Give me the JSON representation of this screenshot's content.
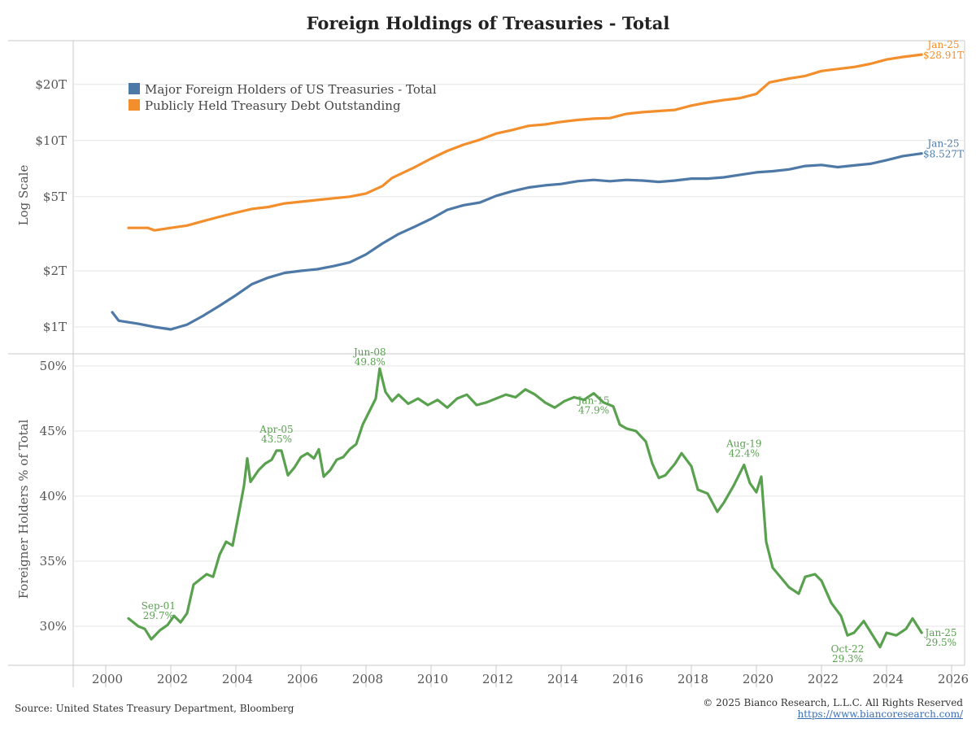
{
  "title": "Foreign Holdings of Treasuries - Total",
  "footer": {
    "source": "Source: United States Treasury Department, Bloomberg",
    "copyright": "© 2025 Bianco Research, L.L.C. All Rights Reserved",
    "website": "https://www.biancoresearch.com/"
  },
  "colors": {
    "foreign": "#4e79a7",
    "debt": "#f28e2b",
    "pct": "#59a14f",
    "grid": "#e6e6e6",
    "axis": "#c8c8c8"
  },
  "chart_data": [
    {
      "type": "line",
      "ylabel": "Log Scale",
      "yscale": "log",
      "yticks": [
        {
          "value": 1,
          "label": "$1T"
        },
        {
          "value": 2,
          "label": "$2T"
        },
        {
          "value": 5,
          "label": "$5T"
        },
        {
          "value": 10,
          "label": "$10T"
        },
        {
          "value": 20,
          "label": "$20T"
        }
      ],
      "legend_position": "top-left",
      "series": [
        {
          "name": "Major Foreign Holders of US Treasuries  -  Total",
          "key": "foreign",
          "points": [
            [
              2000.2,
              1.2
            ],
            [
              2000.4,
              1.08
            ],
            [
              2001.0,
              1.04
            ],
            [
              2001.5,
              1.0
            ],
            [
              2002.0,
              0.97
            ],
            [
              2002.5,
              1.03
            ],
            [
              2003.0,
              1.15
            ],
            [
              2003.5,
              1.3
            ],
            [
              2004.0,
              1.48
            ],
            [
              2004.5,
              1.7
            ],
            [
              2005.0,
              1.84
            ],
            [
              2005.5,
              1.95
            ],
            [
              2006.0,
              2.0
            ],
            [
              2006.5,
              2.04
            ],
            [
              2007.0,
              2.12
            ],
            [
              2007.5,
              2.22
            ],
            [
              2008.0,
              2.45
            ],
            [
              2008.5,
              2.8
            ],
            [
              2009.0,
              3.15
            ],
            [
              2009.5,
              3.45
            ],
            [
              2010.0,
              3.8
            ],
            [
              2010.5,
              4.25
            ],
            [
              2011.0,
              4.5
            ],
            [
              2011.5,
              4.65
            ],
            [
              2012.0,
              5.05
            ],
            [
              2012.5,
              5.35
            ],
            [
              2013.0,
              5.6
            ],
            [
              2013.5,
              5.75
            ],
            [
              2014.0,
              5.85
            ],
            [
              2014.5,
              6.05
            ],
            [
              2015.0,
              6.15
            ],
            [
              2015.5,
              6.05
            ],
            [
              2016.0,
              6.15
            ],
            [
              2016.5,
              6.1
            ],
            [
              2017.0,
              6.0
            ],
            [
              2017.5,
              6.1
            ],
            [
              2018.0,
              6.25
            ],
            [
              2018.5,
              6.25
            ],
            [
              2019.0,
              6.35
            ],
            [
              2019.5,
              6.55
            ],
            [
              2020.0,
              6.75
            ],
            [
              2020.5,
              6.85
            ],
            [
              2021.0,
              7.0
            ],
            [
              2021.5,
              7.3
            ],
            [
              2022.0,
              7.4
            ],
            [
              2022.5,
              7.2
            ],
            [
              2023.0,
              7.35
            ],
            [
              2023.5,
              7.5
            ],
            [
              2024.0,
              7.85
            ],
            [
              2024.5,
              8.25
            ],
            [
              2025.08,
              8.527
            ]
          ]
        },
        {
          "name": "Publicly Held Treasury Debt Outstanding",
          "key": "debt",
          "points": [
            [
              2000.7,
              3.4
            ],
            [
              2001.3,
              3.4
            ],
            [
              2001.5,
              3.3
            ],
            [
              2002.0,
              3.4
            ],
            [
              2002.5,
              3.5
            ],
            [
              2003.0,
              3.7
            ],
            [
              2003.5,
              3.9
            ],
            [
              2004.0,
              4.1
            ],
            [
              2004.5,
              4.3
            ],
            [
              2005.0,
              4.4
            ],
            [
              2005.5,
              4.6
            ],
            [
              2006.0,
              4.7
            ],
            [
              2006.5,
              4.8
            ],
            [
              2007.0,
              4.9
            ],
            [
              2007.5,
              5.0
            ],
            [
              2008.0,
              5.2
            ],
            [
              2008.5,
              5.7
            ],
            [
              2008.8,
              6.3
            ],
            [
              2009.5,
              7.2
            ],
            [
              2010.0,
              8.0
            ],
            [
              2010.5,
              8.8
            ],
            [
              2011.0,
              9.5
            ],
            [
              2011.5,
              10.1
            ],
            [
              2012.0,
              10.9
            ],
            [
              2012.5,
              11.4
            ],
            [
              2013.0,
              12.0
            ],
            [
              2013.5,
              12.2
            ],
            [
              2014.0,
              12.6
            ],
            [
              2014.5,
              12.9
            ],
            [
              2015.0,
              13.1
            ],
            [
              2015.5,
              13.2
            ],
            [
              2016.0,
              13.9
            ],
            [
              2016.5,
              14.2
            ],
            [
              2017.0,
              14.4
            ],
            [
              2017.5,
              14.6
            ],
            [
              2018.0,
              15.4
            ],
            [
              2018.5,
              16.0
            ],
            [
              2019.0,
              16.5
            ],
            [
              2019.5,
              16.9
            ],
            [
              2020.0,
              17.8
            ],
            [
              2020.4,
              20.5
            ],
            [
              2021.0,
              21.5
            ],
            [
              2021.5,
              22.2
            ],
            [
              2022.0,
              23.6
            ],
            [
              2022.5,
              24.2
            ],
            [
              2023.0,
              24.8
            ],
            [
              2023.5,
              25.8
            ],
            [
              2024.0,
              27.2
            ],
            [
              2024.5,
              28.1
            ],
            [
              2025.08,
              28.91
            ]
          ]
        }
      ],
      "annotations": [
        {
          "key": "debt",
          "x": 2025.08,
          "y": 28.91,
          "line1": "Jan-25",
          "line2": "$28.91T"
        },
        {
          "key": "foreign",
          "x": 2025.08,
          "y": 8.527,
          "line1": "Jan-25",
          "line2": "$8.527T"
        }
      ]
    },
    {
      "type": "line",
      "ylabel": "Foreigner Holders % of Total",
      "ylim": [
        26.5,
        50.5
      ],
      "yticks": [
        {
          "value": 30,
          "label": "30%"
        },
        {
          "value": 35,
          "label": "35%"
        },
        {
          "value": 40,
          "label": "40%"
        },
        {
          "value": 45,
          "label": "45%"
        },
        {
          "value": 50,
          "label": "50%"
        }
      ],
      "xlim": [
        1999.0,
        2026.4
      ],
      "xticks": [
        "2000",
        "2002",
        "2004",
        "2006",
        "2008",
        "2010",
        "2012",
        "2014",
        "2016",
        "2018",
        "2020",
        "2022",
        "2024",
        "2026"
      ],
      "series": [
        {
          "name": "",
          "key": "pct",
          "points": [
            [
              2000.7,
              30.6
            ],
            [
              2001.0,
              30.0
            ],
            [
              2001.2,
              29.8
            ],
            [
              2001.4,
              29.0
            ],
            [
              2001.67,
              29.7
            ],
            [
              2001.9,
              30.1
            ],
            [
              2002.1,
              30.8
            ],
            [
              2002.3,
              30.3
            ],
            [
              2002.5,
              31.0
            ],
            [
              2002.7,
              33.2
            ],
            [
              2002.9,
              33.6
            ],
            [
              2003.1,
              34.0
            ],
            [
              2003.3,
              33.8
            ],
            [
              2003.5,
              35.5
            ],
            [
              2003.7,
              36.5
            ],
            [
              2003.9,
              36.2
            ],
            [
              2004.1,
              38.8
            ],
            [
              2004.25,
              40.8
            ],
            [
              2004.35,
              42.9
            ],
            [
              2004.45,
              41.1
            ],
            [
              2004.7,
              42.0
            ],
            [
              2004.9,
              42.5
            ],
            [
              2005.1,
              42.8
            ],
            [
              2005.25,
              43.5
            ],
            [
              2005.4,
              43.5
            ],
            [
              2005.6,
              41.6
            ],
            [
              2005.8,
              42.2
            ],
            [
              2006.0,
              43.0
            ],
            [
              2006.2,
              43.3
            ],
            [
              2006.4,
              42.9
            ],
            [
              2006.55,
              43.6
            ],
            [
              2006.7,
              41.5
            ],
            [
              2006.9,
              42.0
            ],
            [
              2007.1,
              42.8
            ],
            [
              2007.3,
              43.0
            ],
            [
              2007.5,
              43.6
            ],
            [
              2007.7,
              44.0
            ],
            [
              2007.9,
              45.5
            ],
            [
              2008.1,
              46.5
            ],
            [
              2008.3,
              47.5
            ],
            [
              2008.42,
              49.8
            ],
            [
              2008.6,
              48.0
            ],
            [
              2008.8,
              47.3
            ],
            [
              2009.0,
              47.8
            ],
            [
              2009.3,
              47.1
            ],
            [
              2009.6,
              47.5
            ],
            [
              2009.9,
              47.0
            ],
            [
              2010.2,
              47.4
            ],
            [
              2010.5,
              46.8
            ],
            [
              2010.8,
              47.5
            ],
            [
              2011.1,
              47.8
            ],
            [
              2011.4,
              47.0
            ],
            [
              2011.7,
              47.2
            ],
            [
              2012.0,
              47.5
            ],
            [
              2012.3,
              47.8
            ],
            [
              2012.6,
              47.6
            ],
            [
              2012.9,
              48.2
            ],
            [
              2013.2,
              47.8
            ],
            [
              2013.5,
              47.2
            ],
            [
              2013.8,
              46.8
            ],
            [
              2014.1,
              47.3
            ],
            [
              2014.4,
              47.6
            ],
            [
              2014.7,
              47.4
            ],
            [
              2015.0,
              47.9
            ],
            [
              2015.3,
              47.2
            ],
            [
              2015.6,
              46.9
            ],
            [
              2015.8,
              45.5
            ],
            [
              2016.0,
              45.2
            ],
            [
              2016.3,
              45.0
            ],
            [
              2016.6,
              44.2
            ],
            [
              2016.8,
              42.5
            ],
            [
              2017.0,
              41.4
            ],
            [
              2017.2,
              41.6
            ],
            [
              2017.5,
              42.5
            ],
            [
              2017.7,
              43.3
            ],
            [
              2018.0,
              42.3
            ],
            [
              2018.2,
              40.5
            ],
            [
              2018.5,
              40.2
            ],
            [
              2018.8,
              38.8
            ],
            [
              2019.0,
              39.5
            ],
            [
              2019.3,
              40.8
            ],
            [
              2019.62,
              42.4
            ],
            [
              2019.8,
              41.0
            ],
            [
              2020.0,
              40.3
            ],
            [
              2020.15,
              41.5
            ],
            [
              2020.3,
              36.5
            ],
            [
              2020.5,
              34.5
            ],
            [
              2020.8,
              33.6
            ],
            [
              2021.0,
              33.0
            ],
            [
              2021.3,
              32.5
            ],
            [
              2021.5,
              33.8
            ],
            [
              2021.8,
              34.0
            ],
            [
              2022.0,
              33.5
            ],
            [
              2022.3,
              31.8
            ],
            [
              2022.6,
              30.8
            ],
            [
              2022.8,
              29.3
            ],
            [
              2023.0,
              29.5
            ],
            [
              2023.3,
              30.4
            ],
            [
              2023.6,
              29.2
            ],
            [
              2023.8,
              28.4
            ],
            [
              2024.0,
              29.5
            ],
            [
              2024.3,
              29.3
            ],
            [
              2024.6,
              29.8
            ],
            [
              2024.8,
              30.6
            ],
            [
              2025.08,
              29.5
            ]
          ]
        }
      ],
      "annotations": [
        {
          "x": 2001.67,
          "y": 29.7,
          "line1": "Sep-01",
          "line2": "29.7%"
        },
        {
          "x": 2005.25,
          "y": 43.5,
          "line1": "Apr-05",
          "line2": "43.5%"
        },
        {
          "x": 2008.42,
          "y": 49.8,
          "line1": "Jun-08",
          "line2": "49.8%"
        },
        {
          "x": 2015.0,
          "y": 47.9,
          "line1": "Jan-15",
          "line2": "47.9%"
        },
        {
          "x": 2019.62,
          "y": 42.4,
          "line1": "Aug-19",
          "line2": "42.4%"
        },
        {
          "x": 2022.8,
          "y": 29.3,
          "line1": "Oct-22",
          "line2": "29.3%"
        },
        {
          "x": 2025.08,
          "y": 29.5,
          "line1": "Jan-25",
          "line2": "29.5%"
        }
      ]
    }
  ]
}
